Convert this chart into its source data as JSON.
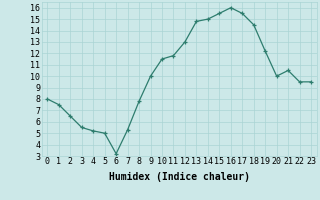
{
  "x": [
    0,
    1,
    2,
    3,
    4,
    5,
    6,
    7,
    8,
    9,
    10,
    11,
    12,
    13,
    14,
    15,
    16,
    17,
    18,
    19,
    20,
    21,
    22,
    23
  ],
  "y": [
    8.0,
    7.5,
    6.5,
    5.5,
    5.2,
    5.0,
    3.2,
    5.3,
    7.8,
    10.0,
    11.5,
    11.8,
    13.0,
    14.8,
    15.0,
    15.5,
    16.0,
    15.5,
    14.5,
    12.2,
    10.0,
    10.5,
    9.5,
    9.5
  ],
  "xlabel": "Humidex (Indice chaleur)",
  "xlim": [
    -0.5,
    23.5
  ],
  "ylim": [
    3,
    16.5
  ],
  "yticks": [
    3,
    4,
    5,
    6,
    7,
    8,
    9,
    10,
    11,
    12,
    13,
    14,
    15,
    16
  ],
  "xticks": [
    0,
    1,
    2,
    3,
    4,
    5,
    6,
    7,
    8,
    9,
    10,
    11,
    12,
    13,
    14,
    15,
    16,
    17,
    18,
    19,
    20,
    21,
    22,
    23
  ],
  "line_color": "#2e7d6e",
  "marker_color": "#2e7d6e",
  "bg_color": "#cce8e8",
  "grid_color": "#aad4d4",
  "label_fontsize": 7,
  "tick_fontsize": 6
}
